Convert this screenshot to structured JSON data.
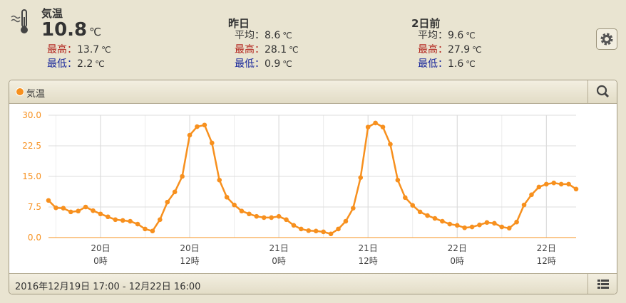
{
  "current": {
    "title": "気温",
    "value": 10.8,
    "unit": "℃",
    "max": {
      "label": "最高：",
      "value": 13.7
    },
    "min": {
      "label": "最低：",
      "value": 2.2
    }
  },
  "yesterday": {
    "title": "昨日",
    "avg": {
      "label": "平均：",
      "value": 8.6
    },
    "max": {
      "label": "最高：",
      "value": 28.1
    },
    "min": {
      "label": "最低：",
      "value": 0.9
    }
  },
  "two_days_ago": {
    "title": "2日前",
    "avg": {
      "label": "平均：",
      "value": 9.6
    },
    "max": {
      "label": "最高：",
      "value": 27.9
    },
    "min": {
      "label": "最低：",
      "value": 1.6
    }
  },
  "footer": "2016年12月19日 17:00 - 12月22日 16:00",
  "chart_data": {
    "type": "line",
    "categories": [
      null,
      null,
      null,
      null,
      null,
      null,
      null,
      [
        "20日",
        "0時"
      ],
      null,
      null,
      null,
      null,
      null,
      null,
      null,
      null,
      null,
      null,
      null,
      [
        "20日",
        "12時"
      ],
      null,
      null,
      null,
      null,
      null,
      null,
      null,
      null,
      null,
      null,
      null,
      [
        "21日",
        "0時"
      ],
      null,
      null,
      null,
      null,
      null,
      null,
      null,
      null,
      null,
      null,
      null,
      [
        "21日",
        "12時"
      ],
      null,
      null,
      null,
      null,
      null,
      null,
      null,
      null,
      null,
      null,
      null,
      [
        "22日",
        "0時"
      ],
      null,
      null,
      null,
      null,
      null,
      null,
      null,
      null,
      null,
      null,
      null,
      [
        "22日",
        "12時"
      ],
      null,
      null,
      null,
      null
    ],
    "series": [
      {
        "name": "気温",
        "color": "#f7901e",
        "values": [
          9.1,
          7.3,
          7.2,
          6.3,
          6.5,
          7.5,
          6.6,
          5.8,
          5.1,
          4.4,
          4.2,
          4.0,
          3.3,
          2.1,
          1.6,
          4.4,
          8.7,
          11.2,
          15.0,
          25.1,
          27.2,
          27.6,
          23.2,
          14.1,
          9.9,
          8.0,
          6.5,
          5.8,
          5.2,
          4.9,
          4.9,
          5.2,
          4.4,
          3.0,
          2.1,
          1.7,
          1.6,
          1.4,
          0.9,
          2.1,
          4.0,
          7.2,
          14.7,
          27.1,
          28.1,
          27.1,
          22.9,
          14.1,
          9.8,
          7.9,
          6.3,
          5.4,
          4.7,
          4.0,
          3.3,
          3.0,
          2.4,
          2.6,
          3.1,
          3.7,
          3.5,
          2.6,
          2.3,
          3.8,
          8.0,
          10.5,
          12.4,
          13.1,
          13.4,
          13.1,
          13.1,
          11.9
        ]
      }
    ],
    "ylim": [
      0,
      30
    ],
    "yticks": [
      {
        "value": 0,
        "label": "0.0"
      },
      {
        "value": 7.5,
        "label": "7.5"
      },
      {
        "value": 15,
        "label": "15.0"
      },
      {
        "value": 22.5,
        "label": "22.5"
      },
      {
        "value": 30,
        "label": "30.0"
      }
    ],
    "grid": true
  }
}
